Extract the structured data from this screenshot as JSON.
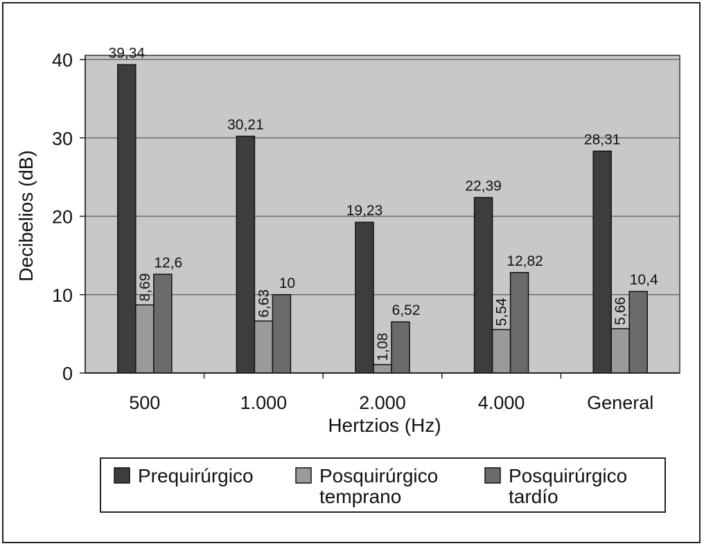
{
  "chart_data": {
    "type": "bar",
    "categories": [
      "500",
      "1.000",
      "2.000",
      "4.000",
      "General"
    ],
    "series": [
      {
        "name": "Prequirúrgico",
        "legend_lines": [
          "Prequirúrgico"
        ],
        "color": "#3d3d3d",
        "values": [
          39.34,
          30.21,
          19.23,
          22.39,
          28.31
        ],
        "labels": [
          "39,34",
          "30,21",
          "19,23",
          "22,39",
          "28,31"
        ]
      },
      {
        "name": "Posquirúrgico temprano",
        "legend_lines": [
          "Posquirúrgico",
          "temprano"
        ],
        "color": "#9a9a9a",
        "values": [
          8.69,
          6.63,
          1.08,
          5.54,
          5.66
        ],
        "labels": [
          "8,69",
          "6,63",
          "1,08",
          "5,54",
          "5,66"
        ]
      },
      {
        "name": "Posquirúrgico tardío",
        "legend_lines": [
          "Posquirúrgico",
          "tardío"
        ],
        "color": "#6b6b6b",
        "values": [
          12.6,
          10,
          6.52,
          12.82,
          10.4
        ],
        "labels": [
          "12,6",
          "10",
          "6,52",
          "12,82",
          "10,4"
        ]
      }
    ],
    "title": "",
    "xlabel": "Hertzios (Hz)",
    "ylabel": "Decibelios (dB)",
    "ylim": [
      0,
      40
    ],
    "yticks": [
      0,
      10,
      20,
      30,
      40
    ],
    "grid": true,
    "plot_background": "#c8c8c8",
    "legend_position": "bottom"
  }
}
